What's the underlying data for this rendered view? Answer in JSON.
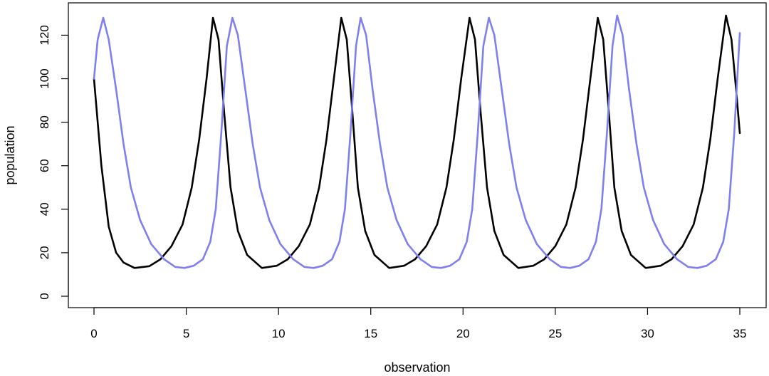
{
  "chart_data": {
    "type": "line",
    "title": "",
    "xlabel": "observation",
    "ylabel": "population",
    "xlim": [
      0,
      35
    ],
    "ylim": [
      0,
      128
    ],
    "xticks": [
      0,
      5,
      10,
      15,
      20,
      25,
      30,
      35
    ],
    "yticks": [
      0,
      20,
      40,
      60,
      80,
      100,
      120
    ],
    "grid": false,
    "legend": "none",
    "series": [
      {
        "color": "#000000",
        "x": [
          0,
          0.4,
          0.8,
          1.2,
          1.6,
          2.2,
          3.0,
          3.6,
          4.2,
          4.8,
          5.3,
          5.7,
          6.1,
          6.45,
          6.75,
          7.05,
          7.4,
          7.8,
          8.3,
          9.1,
          9.9,
          10.5,
          11.1,
          11.7,
          12.2,
          12.6,
          13.0,
          13.4,
          13.7,
          14.0,
          14.3,
          14.7,
          15.2,
          16.0,
          16.8,
          17.4,
          18.0,
          18.6,
          19.1,
          19.5,
          19.9,
          20.35,
          20.65,
          20.95,
          21.3,
          21.7,
          22.2,
          23.0,
          23.8,
          24.4,
          25.0,
          25.6,
          26.1,
          26.5,
          26.9,
          27.3,
          27.6,
          27.9,
          28.2,
          28.6,
          29.1,
          29.9,
          30.7,
          31.3,
          31.9,
          32.5,
          33.0,
          33.4,
          33.8,
          34.25,
          34.55,
          34.8,
          35.0
        ],
        "y": [
          100,
          60,
          32,
          20,
          15.5,
          13,
          13.8,
          17,
          23,
          33,
          50,
          72,
          100,
          128,
          118,
          85,
          50,
          30,
          19,
          13,
          14,
          17,
          23,
          33,
          50,
          72,
          100,
          128,
          118,
          85,
          50,
          30,
          19,
          13,
          14,
          17,
          23,
          33,
          50,
          72,
          100,
          128,
          118,
          85,
          50,
          30,
          19,
          13,
          14,
          17,
          23,
          33,
          50,
          72,
          100,
          128,
          118,
          85,
          50,
          30,
          19,
          13,
          14,
          17,
          23,
          33,
          50,
          72,
          100,
          129,
          118,
          95,
          75
        ]
      },
      {
        "color": "#7f7ff0",
        "x": [
          0,
          0.2,
          0.5,
          0.8,
          1.2,
          1.6,
          2.0,
          2.5,
          3.1,
          3.8,
          4.4,
          4.9,
          5.4,
          5.9,
          6.3,
          6.6,
          6.9,
          7.2,
          7.5,
          7.8,
          8.2,
          8.6,
          9.0,
          9.5,
          10.1,
          10.8,
          11.4,
          11.9,
          12.4,
          12.9,
          13.3,
          13.6,
          13.9,
          14.2,
          14.45,
          14.75,
          15.1,
          15.5,
          15.9,
          16.4,
          17.0,
          17.7,
          18.3,
          18.8,
          19.3,
          19.8,
          20.2,
          20.5,
          20.8,
          21.1,
          21.4,
          21.7,
          22.1,
          22.5,
          22.9,
          23.4,
          24.0,
          24.7,
          25.3,
          25.8,
          26.3,
          26.8,
          27.2,
          27.5,
          27.8,
          28.1,
          28.35,
          28.65,
          29.0,
          29.4,
          29.8,
          30.3,
          30.9,
          31.6,
          32.2,
          32.7,
          33.2,
          33.7,
          34.1,
          34.4,
          34.7,
          35.0
        ],
        "y": [
          100,
          118,
          128,
          118,
          95,
          70,
          50,
          35,
          24,
          17,
          13.5,
          13,
          14,
          17,
          25,
          40,
          75,
          115,
          128,
          120,
          95,
          70,
          50,
          35,
          24,
          17,
          13.5,
          13,
          14,
          17,
          25,
          40,
          75,
          115,
          128,
          120,
          95,
          70,
          50,
          35,
          24,
          17,
          13.5,
          13,
          14,
          17,
          25,
          40,
          75,
          115,
          128,
          120,
          95,
          70,
          50,
          35,
          24,
          17,
          13.5,
          13,
          14,
          17,
          25,
          40,
          75,
          115,
          129,
          120,
          95,
          70,
          50,
          35,
          24,
          17,
          13.5,
          13,
          14,
          17,
          25,
          40,
          75,
          121
        ]
      }
    ]
  }
}
